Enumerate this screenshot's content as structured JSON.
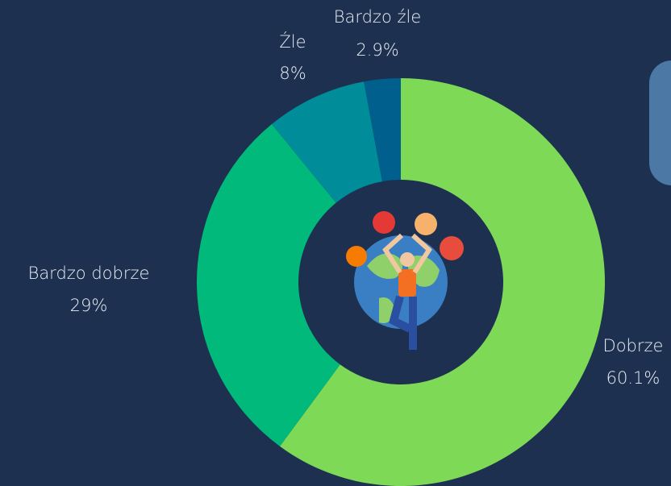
{
  "chart_data": {
    "type": "donut",
    "categories": [
      "Dobrze",
      "Bardzo dobrze",
      "Źle",
      "Bardzo źle"
    ],
    "values": [
      60.1,
      29,
      8,
      2.9
    ],
    "value_labels": [
      "60.1%",
      "29%",
      "8%",
      "2.9%"
    ],
    "colors": [
      "#7ed957",
      "#00b97b",
      "#008c99",
      "#005f8c"
    ]
  }
}
